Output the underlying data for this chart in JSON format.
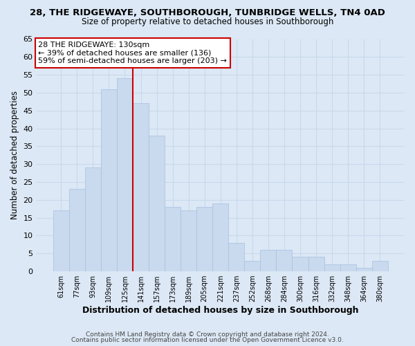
{
  "title": "28, THE RIDGEWAYE, SOUTHBOROUGH, TUNBRIDGE WELLS, TN4 0AD",
  "subtitle": "Size of property relative to detached houses in Southborough",
  "xlabel": "Distribution of detached houses by size in Southborough",
  "ylabel": "Number of detached properties",
  "bar_labels": [
    "61sqm",
    "77sqm",
    "93sqm",
    "109sqm",
    "125sqm",
    "141sqm",
    "157sqm",
    "173sqm",
    "189sqm",
    "205sqm",
    "221sqm",
    "237sqm",
    "252sqm",
    "268sqm",
    "284sqm",
    "300sqm",
    "316sqm",
    "332sqm",
    "348sqm",
    "364sqm",
    "380sqm"
  ],
  "bar_heights": [
    17,
    23,
    29,
    51,
    54,
    47,
    38,
    18,
    17,
    18,
    19,
    8,
    3,
    6,
    6,
    4,
    4,
    2,
    2,
    1,
    3
  ],
  "bar_color": "#c9d9ee",
  "bar_edge_color": "#a8c0e0",
  "grid_color": "#c8d8ec",
  "background_color": "#dce8f5",
  "vline_x": 4.5,
  "vline_color": "#cc0000",
  "annotation_text": "28 THE RIDGEWAYE: 130sqm\n← 39% of detached houses are smaller (136)\n59% of semi-detached houses are larger (203) →",
  "annotation_box_color": "#ffffff",
  "annotation_box_edge": "#cc0000",
  "ylim": [
    0,
    65
  ],
  "yticks": [
    0,
    5,
    10,
    15,
    20,
    25,
    30,
    35,
    40,
    45,
    50,
    55,
    60,
    65
  ],
  "footer_line1": "Contains HM Land Registry data © Crown copyright and database right 2024.",
  "footer_line2": "Contains public sector information licensed under the Open Government Licence v3.0."
}
